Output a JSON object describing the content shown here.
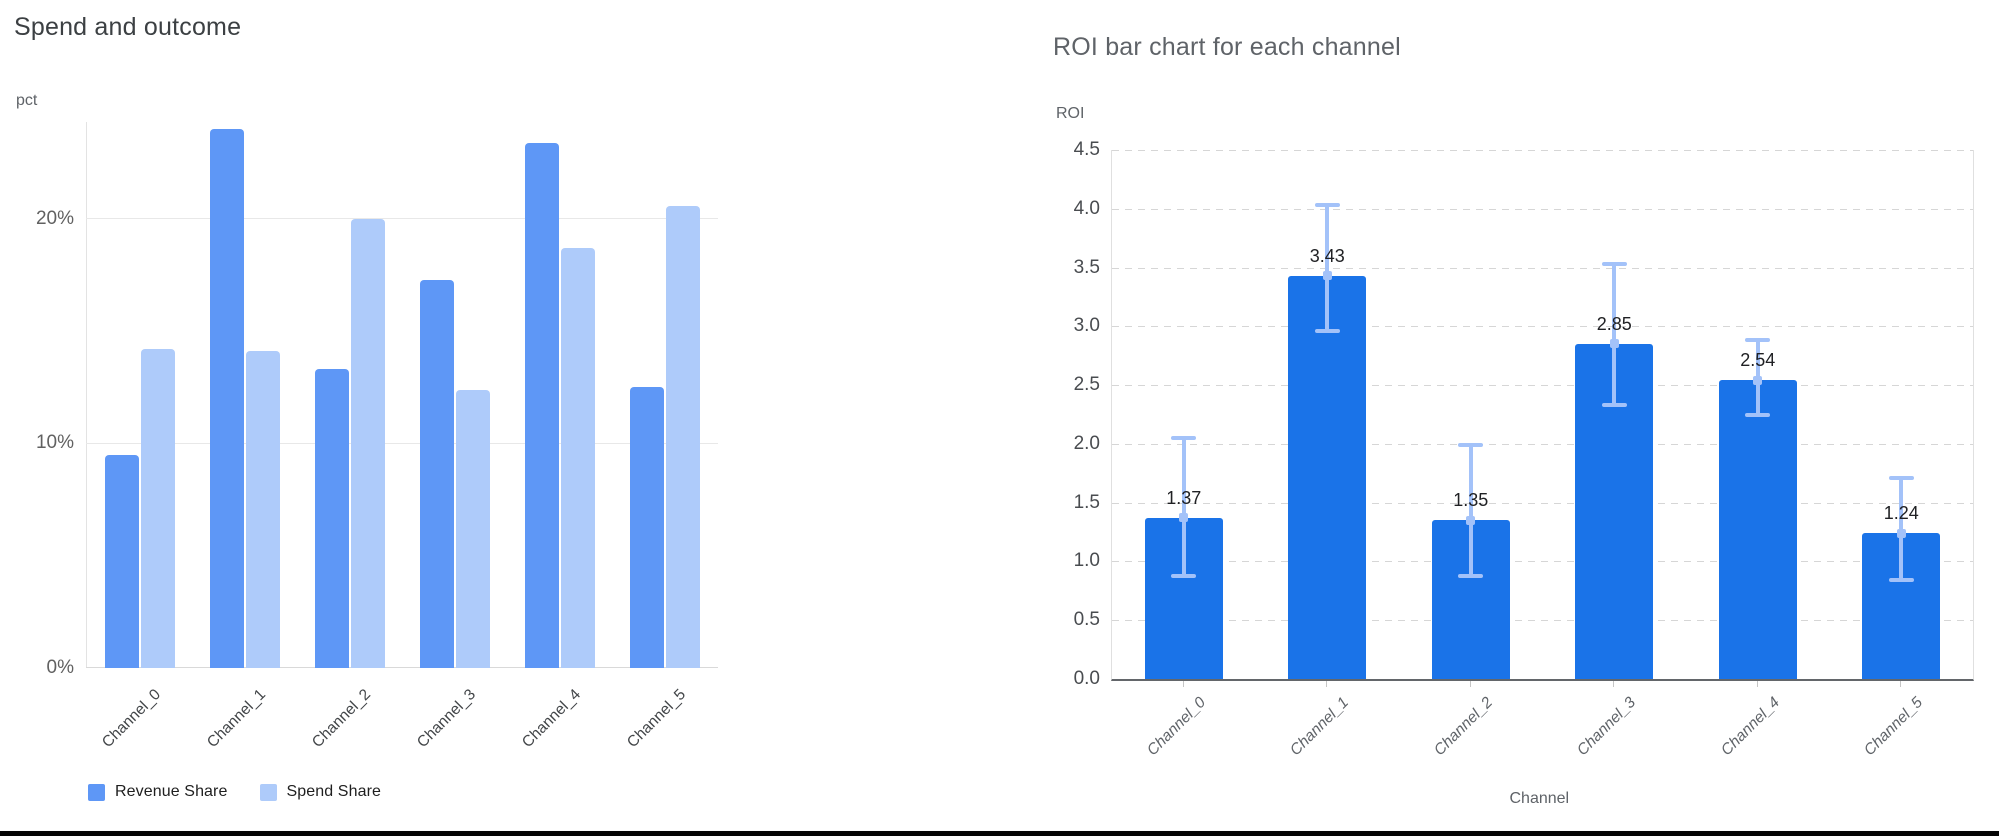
{
  "chart_data": [
    {
      "type": "bar",
      "title": "Spend and outcome",
      "ylabel": "pct",
      "xlabel": "",
      "categories": [
        "Channel_0",
        "Channel_1",
        "Channel_2",
        "Channel_3",
        "Channel_4",
        "Channel_5"
      ],
      "series": [
        {
          "name": "Revenue Share",
          "color": "#5e97f6",
          "values": [
            9.5,
            24.0,
            13.3,
            17.3,
            23.4,
            12.5
          ]
        },
        {
          "name": "Spend Share",
          "color": "#aecbfa",
          "values": [
            14.2,
            14.1,
            20.0,
            12.4,
            18.7,
            20.6
          ]
        }
      ],
      "ytick_labels": [
        "0%",
        "10%",
        "20%"
      ],
      "ytick_values": [
        0,
        10,
        20
      ],
      "ylim": [
        0,
        25.3
      ],
      "grid": "solid",
      "legend_position": "bottom"
    },
    {
      "type": "bar",
      "title": "ROI bar chart for each channel",
      "ylabel": "ROI",
      "xlabel": "Channel",
      "categories": [
        "Channel_0",
        "Channel_1",
        "Channel_2",
        "Channel_3",
        "Channel_4",
        "Channel_5"
      ],
      "values": [
        1.37,
        3.43,
        1.35,
        2.85,
        2.54,
        1.24
      ],
      "data_labels": [
        "1.37",
        "3.43",
        "1.35",
        "2.85",
        "2.54",
        "1.24"
      ],
      "error_low": [
        0.88,
        2.96,
        0.88,
        2.33,
        2.25,
        0.84
      ],
      "error_high": [
        2.05,
        4.03,
        1.99,
        3.53,
        2.88,
        1.71
      ],
      "ytick_labels": [
        "0.0",
        "0.5",
        "1.0",
        "1.5",
        "2.0",
        "2.5",
        "3.0",
        "3.5",
        "4.0",
        "4.5"
      ],
      "ytick_values": [
        0,
        0.5,
        1.0,
        1.5,
        2.0,
        2.5,
        3.0,
        3.5,
        4.0,
        4.5
      ],
      "ylim": [
        0,
        4.5
      ],
      "bar_color": "#1a73e8",
      "error_bar_color": "#a3c2f9",
      "grid": "dashed",
      "legend_position": "none"
    }
  ]
}
